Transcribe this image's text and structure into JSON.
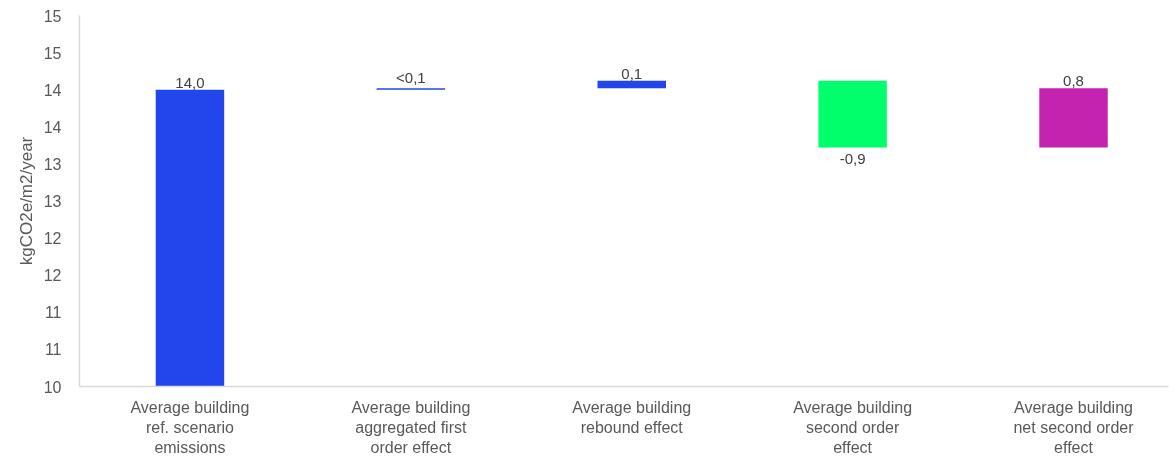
{
  "chart_data": {
    "type": "bar",
    "ylabel": "kgCO2e/m2/year",
    "categories": [
      "Average building ref. scenario emissions",
      "Average building aggregated first order effect",
      "Average building rebound effect",
      "Average building second order effect",
      "Average building net second order effect"
    ],
    "values": [
      14.0,
      0.02,
      0.1,
      -0.9,
      0.8
    ],
    "base": [
      null,
      14.0,
      14.02,
      14.12,
      13.22
    ],
    "colors": [
      "#2346ec",
      "#2346ec",
      "#2346ec",
      "#00ff6a",
      "#c423b0"
    ],
    "value_labels": [
      "14,0",
      "<0,1",
      "0,1",
      "-0,9",
      "0,8"
    ],
    "ylim": [
      10,
      15
    ],
    "yticks": [
      10,
      {
        "value": 10.5,
        "label": "11"
      },
      11,
      {
        "value": 11.5,
        "label": "12"
      },
      12,
      {
        "value": 12.5,
        "label": "13"
      },
      13,
      {
        "value": 13.5,
        "label": "14"
      },
      14,
      {
        "value": 14.5,
        "label": "15"
      },
      15
    ]
  }
}
